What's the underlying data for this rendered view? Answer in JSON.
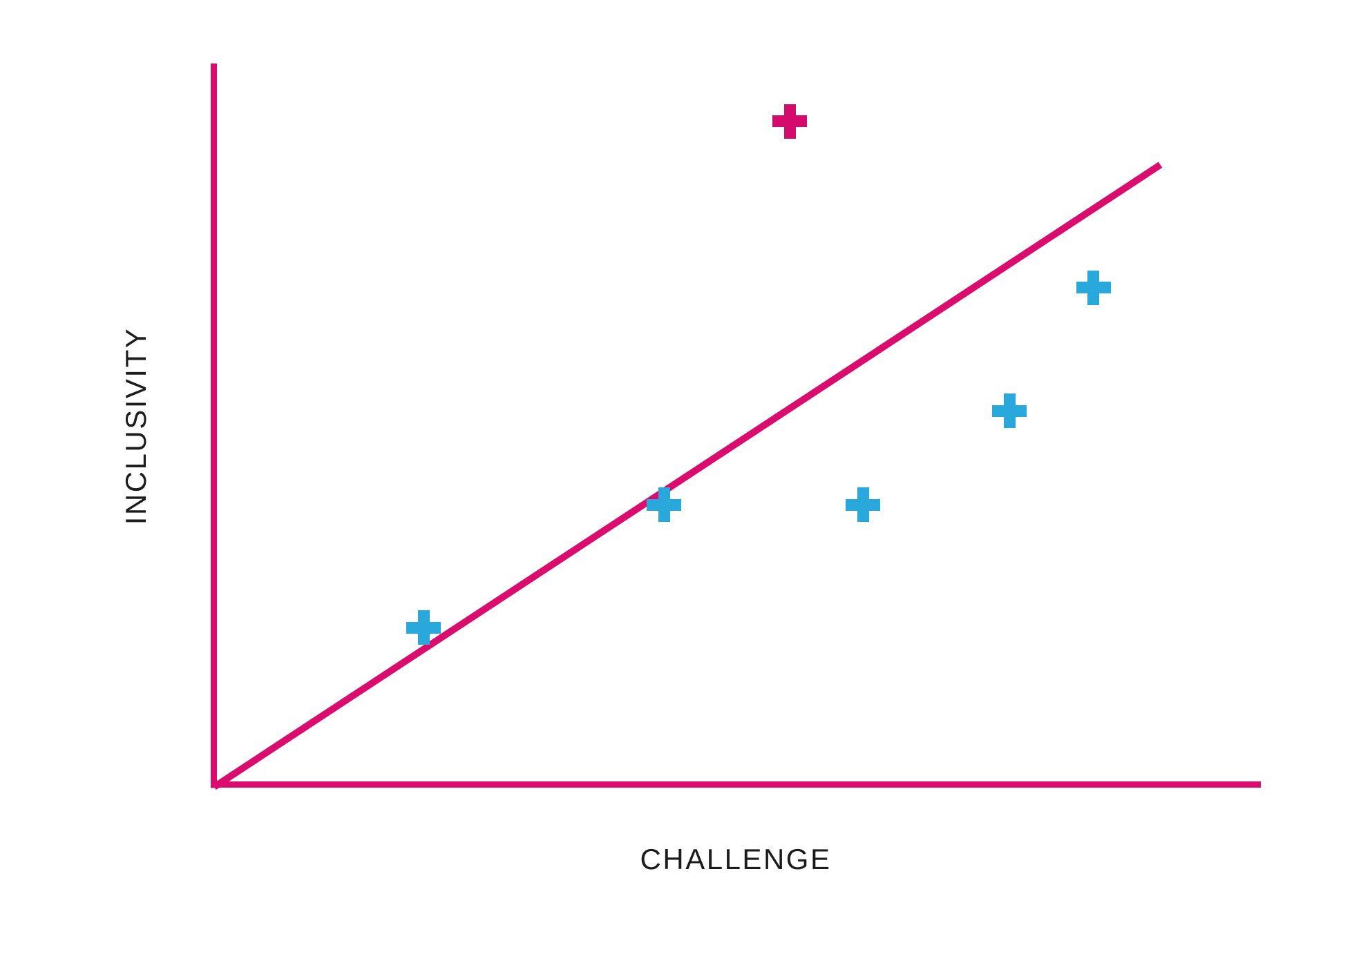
{
  "chart_data": {
    "type": "scatter",
    "title": "",
    "xlabel": "CHALLENGE",
    "ylabel": "INCLUSIVITY",
    "xlim": [
      0,
      10
    ],
    "ylim": [
      0,
      10
    ],
    "grid": false,
    "legend": null,
    "axis_tick_labels": "none",
    "axes_color": "#da0d6e",
    "text_color": "#1c1c1c",
    "series": [
      {
        "name": "blue-points",
        "marker": "plus",
        "color": "#29a8dc",
        "points": [
          {
            "x": 2.0,
            "y": 2.2
          },
          {
            "x": 4.3,
            "y": 3.9
          },
          {
            "x": 6.2,
            "y": 3.9
          },
          {
            "x": 7.6,
            "y": 5.2
          },
          {
            "x": 8.4,
            "y": 6.9
          }
        ]
      },
      {
        "name": "magenta-outlier",
        "marker": "plus",
        "color": "#d40a6d",
        "points": [
          {
            "x": 5.5,
            "y": 9.2
          }
        ]
      }
    ],
    "reference_line": {
      "from": {
        "x": 0,
        "y": 0
      },
      "to": {
        "x": 9.04,
        "y": 8.6
      },
      "color": "#da0d6e"
    }
  }
}
